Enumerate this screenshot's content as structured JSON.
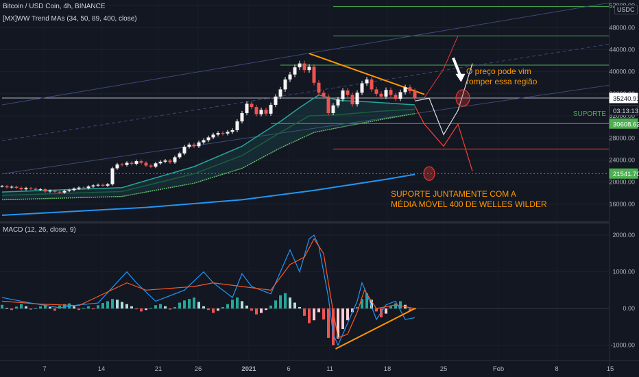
{
  "header": {
    "title": "Bitcoin / USD Coin, 4h, BINANCE",
    "indicator": "[MX]WW Trend MAs (34, 50, 89, 400, close)",
    "macd_title": "MACD (12, 26, close, 9)",
    "currency": "USDC"
  },
  "annotations": {
    "breakout_line1": "O preço pode vim",
    "breakout_line2": "romper essa região",
    "support_line1": "SUPORTE JUNTAMENTE COM A",
    "support_line2": "MÉDIA MÓVEL 400 DE WELLES WILDER",
    "support_tag": "SUPORTE"
  },
  "chart_data": {
    "type": "candlestick",
    "x_ticks": [
      "7",
      "14",
      "21",
      "26",
      "2021",
      "6",
      "11",
      "18",
      "25",
      "Feb",
      "8",
      "15"
    ],
    "price_axis": {
      "ticks": [
        16000,
        20000,
        24000,
        28000,
        32000,
        36000,
        40000,
        44000,
        48000,
        52000
      ],
      "tick_labels": [
        "16000.00",
        "20000.00",
        "24000.00",
        "28000.00",
        "32000.00",
        "36000.00",
        "40000.00",
        "44000.00",
        "48000.00",
        "52000.00"
      ],
      "range": [
        13000,
        53000
      ]
    },
    "price_labels": [
      {
        "value": 35240.91,
        "label": "35240.91",
        "bg": "#ffffff",
        "fg": "#131722"
      },
      {
        "value": 33000,
        "label": "03:13:13",
        "bg": "#131722",
        "fg": "#d1d4dc"
      },
      {
        "value": 30608.62,
        "label": "30608.62",
        "bg": "#4caf50",
        "fg": "#ffffff"
      },
      {
        "value": 21541.7,
        "label": "21541.70",
        "bg": "#4caf50",
        "fg": "#ffffff"
      }
    ],
    "close_series": [
      19250,
      19050,
      19150,
      18950,
      18700,
      18900,
      18800,
      18600,
      18700,
      18300,
      18450,
      18250,
      18100,
      18400,
      18550,
      18800,
      19000,
      18900,
      19200,
      19400,
      19500,
      19350,
      19600,
      22500,
      23200,
      23100,
      23500,
      23300,
      23800,
      23500,
      23000,
      22800,
      23400,
      23700,
      23900,
      23600,
      24500,
      25200,
      26400,
      26800,
      26500,
      27200,
      27600,
      28100,
      28600,
      28900,
      28800,
      29100,
      29400,
      31000,
      32500,
      34200,
      33600,
      32300,
      33100,
      32400,
      34000,
      35500,
      36800,
      38600,
      39500,
      40800,
      41500,
      40300,
      40900,
      38000,
      36200,
      35500,
      32500,
      33900,
      35000,
      36600,
      35800,
      34100,
      36200,
      37900,
      38600,
      36800,
      36000,
      35500,
      36700,
      35800,
      35100,
      36300,
      37200,
      36500,
      35240
    ],
    "moving_averages": [
      {
        "color": "#26a69a",
        "points": [
          [
            0,
            18200
          ],
          [
            25,
            19000
          ],
          [
            40,
            22800
          ],
          [
            50,
            26500
          ],
          [
            58,
            31000
          ],
          [
            62,
            33500
          ],
          [
            66,
            35800
          ],
          [
            70,
            34800
          ],
          [
            77,
            34500
          ],
          [
            86,
            34000
          ]
        ]
      },
      {
        "color": "#1b5e3f",
        "points": [
          [
            0,
            17600
          ],
          [
            25,
            18300
          ],
          [
            40,
            21500
          ],
          [
            50,
            24800
          ],
          [
            58,
            29000
          ],
          [
            64,
            32000
          ],
          [
            70,
            32200
          ],
          [
            78,
            32800
          ],
          [
            86,
            33200
          ]
        ]
      },
      {
        "color": "#66bb6a",
        "points": [
          [
            0,
            16800
          ],
          [
            25,
            17400
          ],
          [
            40,
            19800
          ],
          [
            50,
            22500
          ],
          [
            58,
            26200
          ],
          [
            65,
            29000
          ],
          [
            72,
            30200
          ],
          [
            80,
            31500
          ],
          [
            86,
            32400
          ]
        ]
      },
      {
        "color": "#2196f3",
        "points": [
          [
            0,
            14000
          ],
          [
            30,
            15400
          ],
          [
            50,
            16800
          ],
          [
            65,
            18500
          ],
          [
            80,
            20500
          ],
          [
            86,
            21400
          ]
        ]
      }
    ],
    "horizontal_levels": [
      {
        "value": 51800,
        "color": "#4caf50",
        "from": 69
      },
      {
        "value": 46500,
        "color": "#4caf50",
        "from": 69
      },
      {
        "value": 41200,
        "color": "#4caf50",
        "from": 58
      },
      {
        "value": 35240.91,
        "color": "#b2b5be",
        "from": 0
      },
      {
        "value": 30608.62,
        "color": "#4caf50",
        "from": 56
      },
      {
        "value": 26000,
        "color": "#f44336",
        "from": 69
      },
      {
        "value": 21541.7,
        "color": "#4caf50",
        "from": 0,
        "dotted": true
      }
    ],
    "macd": {
      "axis": {
        "ticks": [
          -1000,
          0,
          1000,
          2000
        ],
        "tick_labels": [
          "-1000.00",
          "0.00",
          "1000.00",
          "2000.00"
        ],
        "range": [
          -1400,
          2300
        ]
      },
      "macd_line": [
        [
          0,
          300
        ],
        [
          6,
          150
        ],
        [
          12,
          20
        ],
        [
          16,
          100
        ],
        [
          20,
          150
        ],
        [
          26,
          1000
        ],
        [
          28,
          700
        ],
        [
          32,
          200
        ],
        [
          38,
          500
        ],
        [
          42,
          1000
        ],
        [
          44,
          700
        ],
        [
          48,
          300
        ],
        [
          50,
          950
        ],
        [
          52,
          600
        ],
        [
          56,
          400
        ],
        [
          60,
          1600
        ],
        [
          62,
          1000
        ],
        [
          64,
          1900
        ],
        [
          65,
          2000
        ],
        [
          66,
          1700
        ],
        [
          68,
          300
        ],
        [
          69,
          -700
        ],
        [
          70,
          -1000
        ],
        [
          72,
          -400
        ],
        [
          74,
          200
        ],
        [
          75,
          700
        ],
        [
          76,
          400
        ],
        [
          78,
          -300
        ],
        [
          80,
          100
        ],
        [
          82,
          200
        ],
        [
          84,
          -300
        ],
        [
          86,
          -250
        ]
      ],
      "signal_line": [
        [
          0,
          200
        ],
        [
          8,
          120
        ],
        [
          16,
          80
        ],
        [
          26,
          700
        ],
        [
          30,
          500
        ],
        [
          40,
          600
        ],
        [
          44,
          700
        ],
        [
          50,
          600
        ],
        [
          56,
          500
        ],
        [
          60,
          1200
        ],
        [
          63,
          1400
        ],
        [
          65,
          1900
        ],
        [
          67,
          1500
        ],
        [
          68.5,
          300
        ],
        [
          70,
          -800
        ],
        [
          72,
          -700
        ],
        [
          74,
          -100
        ],
        [
          75.5,
          500
        ],
        [
          78,
          0
        ],
        [
          82,
          100
        ],
        [
          86,
          0
        ]
      ],
      "histogram": [
        100,
        20,
        -40,
        50,
        120,
        60,
        -30,
        20,
        60,
        100,
        40,
        -60,
        80,
        120,
        140,
        60,
        -40,
        20,
        60,
        -20,
        90,
        150,
        200,
        260,
        240,
        180,
        120,
        60,
        -20,
        -80,
        -40,
        20,
        90,
        120,
        60,
        -30,
        40,
        160,
        220,
        260,
        300,
        180,
        60,
        -40,
        -120,
        -60,
        40,
        120,
        240,
        300,
        200,
        80,
        -60,
        -160,
        -120,
        -40,
        80,
        220,
        360,
        420,
        300,
        160,
        40,
        -200,
        -400,
        -320,
        -100,
        -300,
        -800,
        -1000,
        -820,
        -560,
        -320,
        -100,
        40,
        260,
        420,
        240,
        -80,
        -240,
        -140,
        60,
        140,
        200,
        100,
        -60,
        -20
      ],
      "trendline": [
        [
          69.5,
          -1100
        ],
        [
          86,
          0
        ]
      ]
    }
  },
  "drawings": {
    "resistance": [
      [
        64,
        43300
      ],
      [
        88,
        35900
      ]
    ],
    "channel_upper": [
      [
        0,
        34000
      ],
      [
        130,
        53000
      ]
    ],
    "channel_mid": [
      [
        0,
        27500
      ],
      [
        130,
        45500
      ]
    ],
    "channel_lower": [
      [
        0,
        21500
      ],
      [
        130,
        38000
      ]
    ],
    "zigzag_white": [
      [
        86,
        34700
      ],
      [
        89,
        35200
      ],
      [
        92,
        28600
      ],
      [
        95,
        33000
      ],
      [
        98,
        41500
      ]
    ],
    "zigzag_red": [
      [
        86,
        33800
      ],
      [
        88,
        30500
      ],
      [
        92,
        26500
      ],
      [
        95,
        30500
      ],
      [
        98,
        22000
      ]
    ],
    "red_up": [
      [
        88,
        35300
      ],
      [
        92,
        40500
      ],
      [
        95,
        46500
      ]
    ],
    "arrow": [
      [
        94,
        42500
      ],
      [
        95.5,
        38500
      ]
    ],
    "circle_breakout": [
      96,
      35240.91
    ],
    "circle_support": [
      89,
      21541.7
    ],
    "support_tag_value": 32400
  }
}
